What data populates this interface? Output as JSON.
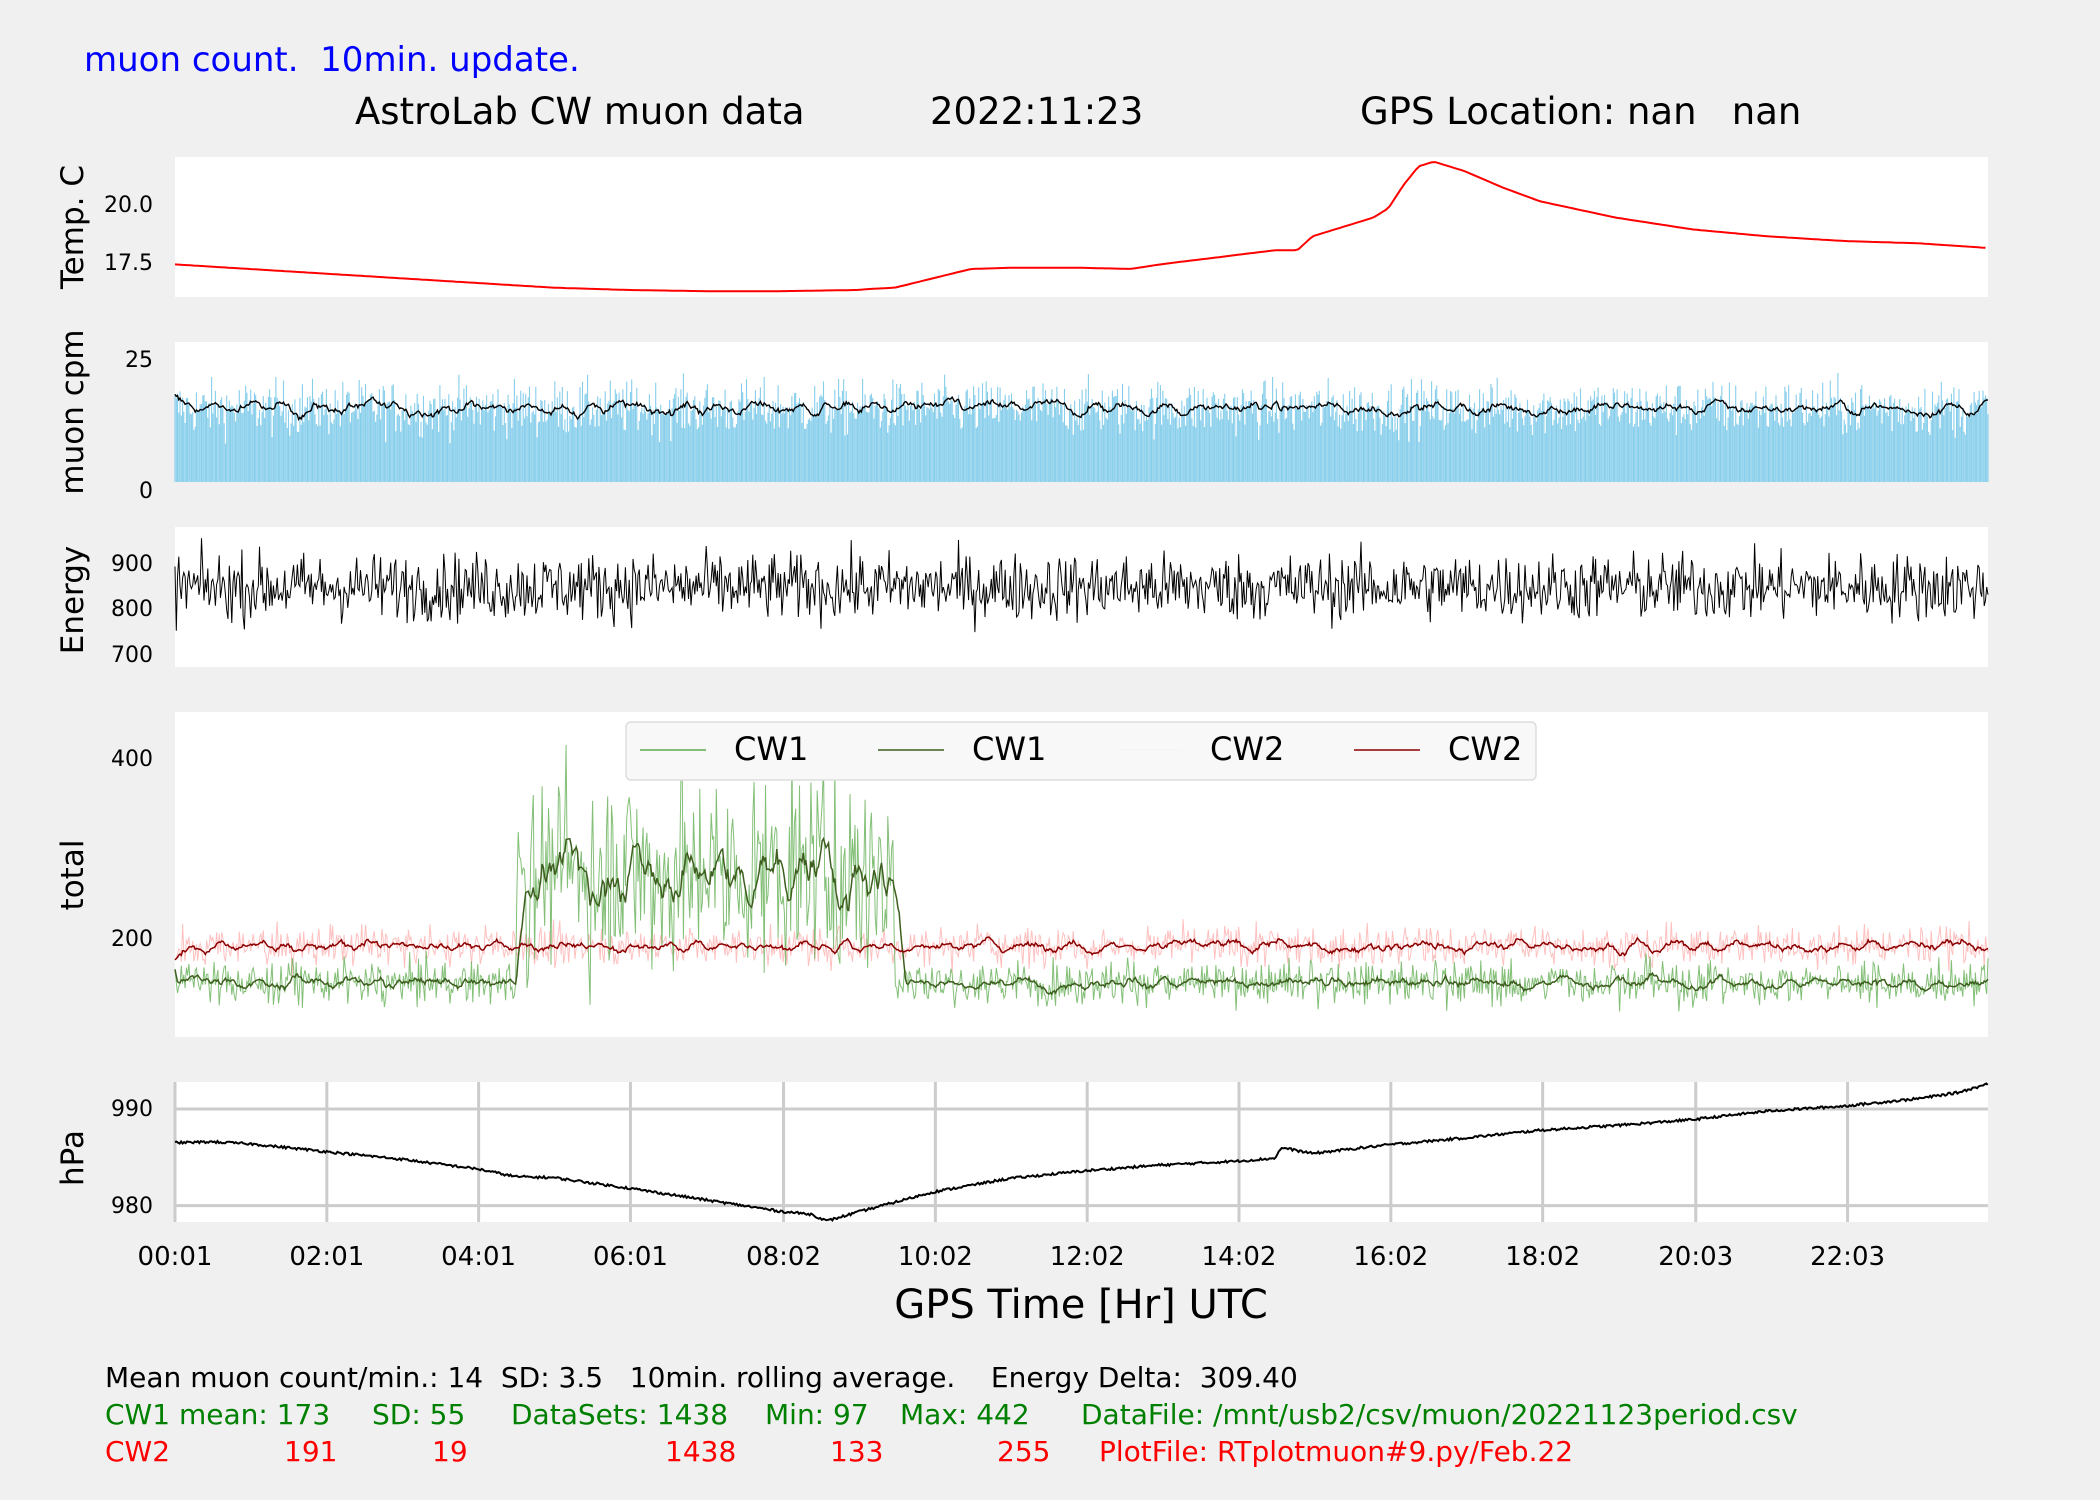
{
  "header": {
    "update_note": "muon count.  10min. update.",
    "title": "AstroLab CW muon data",
    "date": "2022:11:23",
    "gps": "GPS Location: nan   nan"
  },
  "colors": {
    "background": "#f0f0f0",
    "panel": "#ffffff",
    "temperature": "#ff0000",
    "muon_bars": "#87ceeb",
    "muon_avg": "#000000",
    "energy": "#000000",
    "cw1_raw": "#5aaa4a",
    "cw1_avg": "#3d5e1e",
    "cw2_raw": "#ffc0c0",
    "cw2_avg": "#8b0000",
    "pressure": "#000000",
    "grid": "#cccccc",
    "note_blue": "#0000ff",
    "stats_green": "#008000",
    "stats_red": "#ff0000"
  },
  "chart_data": {
    "type": "line",
    "xlabel": "GPS Time  [Hr] UTC",
    "x_ticks": [
      "00:01",
      "02:01",
      "04:01",
      "06:01",
      "08:02",
      "10:02",
      "12:02",
      "14:02",
      "16:02",
      "18:02",
      "20:03",
      "22:03"
    ],
    "x_range_hours": [
      0.0167,
      23.9
    ],
    "panels": [
      {
        "id": "temperature",
        "ylabel": "Temp. C",
        "yticks": [
          "17.5",
          "20.0"
        ],
        "ylim": [
          16.2,
          22.2
        ],
        "series": [
          {
            "x": [
              0,
              1,
              2,
              3,
              4,
              5,
              6,
              7,
              8,
              9,
              9.2,
              9.5,
              10,
              10.5,
              11,
              12,
              12.6,
              13,
              14,
              14.5,
              14.8,
              15,
              15.4,
              15.8,
              16,
              16.2,
              16.4,
              16.6,
              17,
              17.5,
              18,
              19,
              20,
              21,
              22,
              23,
              23.9
            ],
            "y": [
              17.6,
              17.4,
              17.2,
              17.0,
              16.8,
              16.6,
              16.5,
              16.45,
              16.45,
              16.5,
              16.55,
              16.6,
              17.0,
              17.4,
              17.45,
              17.45,
              17.4,
              17.6,
              18.0,
              18.2,
              18.2,
              18.8,
              19.2,
              19.6,
              20.0,
              21.0,
              21.8,
              22.0,
              21.6,
              20.9,
              20.3,
              19.6,
              19.1,
              18.8,
              18.6,
              18.5,
              18.3
            ]
          }
        ]
      },
      {
        "id": "muon",
        "ylabel": "muon cpm",
        "yticks": [
          "0",
          "25"
        ],
        "ylim": [
          0,
          26.5
        ],
        "mean": 14,
        "sd": 3.5,
        "max_observed": 27,
        "series": [
          {
            "name": "",
            "kind": "bars",
            "count": 1438
          },
          {
            "name": "",
            "kind": "rolling_average"
          }
        ]
      },
      {
        "id": "energy",
        "ylabel": "Energy",
        "yticks": [
          "700",
          "800",
          "900"
        ],
        "ylim": [
          670,
          985
        ],
        "mean": 850,
        "min_observed": 670,
        "max_observed": 975,
        "series": [
          {
            "kind": "line",
            "count": 1438
          }
        ]
      },
      {
        "id": "total",
        "ylabel": "total",
        "yticks": [
          "200",
          "400"
        ],
        "ylim": [
          90,
          450
        ],
        "legend": [
          "CW1",
          "CW1",
          "CW2",
          "CW2"
        ],
        "legend_position": "upper-center",
        "series": [
          {
            "name": "CW1",
            "kind": "raw",
            "mean": 173,
            "sd": 55,
            "min": 97,
            "max": 442,
            "count": 1438,
            "burst_hours": [
              4.5,
              9.5
            ],
            "burst_level": 270
          },
          {
            "name": "CW1",
            "kind": "rolling_average"
          },
          {
            "name": "CW2",
            "kind": "raw",
            "mean": 191,
            "sd": 19,
            "min": 133,
            "max": 255,
            "count": 1438
          },
          {
            "name": "CW2",
            "kind": "rolling_average"
          }
        ]
      },
      {
        "id": "pressure",
        "ylabel": "hPa",
        "yticks": [
          "980",
          "990"
        ],
        "ylim": [
          978.3,
          992.8
        ],
        "grid": true,
        "series": [
          {
            "x": [
              0,
              0.5,
              1,
              2,
              3,
              4,
              4.5,
              5,
              6,
              7,
              8,
              8.4,
              8.6,
              9,
              10,
              11,
              12,
              13,
              14,
              14.5,
              14.6,
              15,
              16,
              17,
              18,
              19,
              20,
              21,
              22,
              23,
              23.5,
              23.9
            ],
            "y": [
              986.5,
              986.6,
              986.4,
              985.6,
              984.8,
              983.8,
              983.0,
              982.9,
              981.8,
              980.6,
              979.4,
              979.1,
              978.4,
              979.3,
              981.4,
              982.8,
              983.6,
              984.2,
              984.6,
              984.9,
              986.0,
              985.4,
              986.3,
              987.0,
              987.8,
              988.3,
              988.9,
              989.8,
              990.3,
              991.1,
              991.7,
              992.6
            ]
          }
        ]
      }
    ]
  },
  "stats": {
    "line1": "Mean muon count/min.: 14  SD: 3.5   10min. rolling average.    Energy Delta:  309.40",
    "cw1": {
      "label": "CW1 mean: 173",
      "sd": "SD: 55",
      "datasets": "DataSets: 1438",
      "min": "Min: 97",
      "max": "Max: 442",
      "file": "DataFile: /mnt/usb2/csv/muon/20221123period.csv"
    },
    "cw2": {
      "label": "CW2",
      "mean": "191",
      "sd": "19",
      "datasets": "1438",
      "min": "133",
      "max": "255",
      "file": "PlotFile: RTplotmuon#9.py/Feb.22"
    }
  }
}
